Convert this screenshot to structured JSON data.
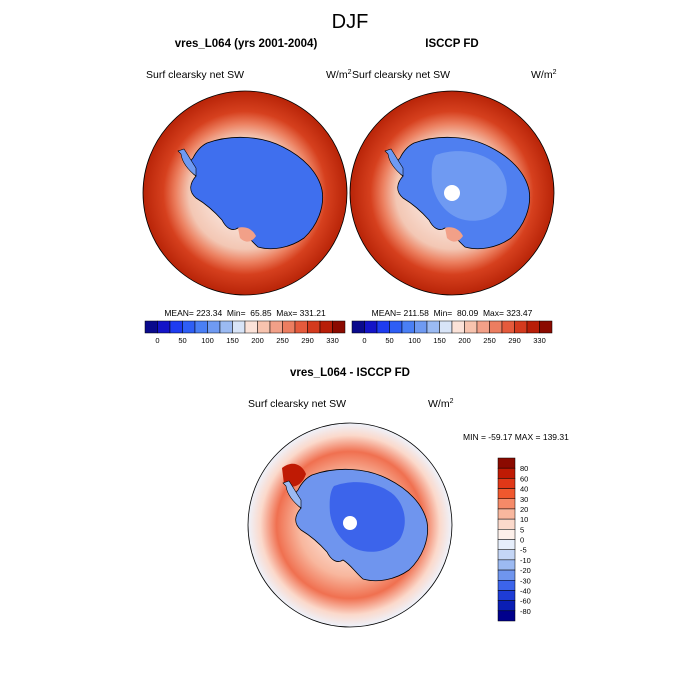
{
  "chart_data": {
    "type": "map",
    "title": "DJF",
    "panels": [
      {
        "title": "vres_L064 (yrs 2001-2004)",
        "left_label": "Surf clearsky net SW",
        "units_base": "W/m",
        "units_exp": "2",
        "stats_text": "MEAN= 223.34  Min=  65.85  Max= 331.21",
        "mean": 223.34,
        "min": 65.85,
        "max": 331.21
      },
      {
        "title": "ISCCP FD",
        "left_label": "Surf clearsky net SW",
        "units_base": "W/m",
        "units_exp": "2",
        "stats_text": "MEAN= 211.58  Min=  80.09  Max= 323.47",
        "mean": 211.58,
        "min": 80.09,
        "max": 323.47
      },
      {
        "title": "vres_L064 - ISCCP FD",
        "left_label": "Surf clearsky net SW",
        "units_base": "W/m",
        "units_exp": "2",
        "stats_text": "MIN = -59.17 MAX = 139.31",
        "min": -59.17,
        "max": 139.31
      }
    ],
    "colorbar_top": {
      "levels": [
        "0",
        "50",
        "100",
        "150",
        "200",
        "250",
        "290",
        "330"
      ],
      "colors": [
        "#0a0a8c",
        "#1414c8",
        "#1e3cf0",
        "#2e5ef5",
        "#4a7ff5",
        "#6f9af2",
        "#9bbaf2",
        "#d8e4f7",
        "#fbe2d8",
        "#f7c3ae",
        "#f2a088",
        "#ec7d60",
        "#e55a3c",
        "#d43a1e",
        "#b81e08",
        "#8b0a00"
      ]
    },
    "colorbar_diff": {
      "levels": [
        "80",
        "60",
        "40",
        "30",
        "20",
        "10",
        "5",
        "0",
        "-5",
        "-10",
        "-20",
        "-30",
        "-40",
        "-60",
        "-80"
      ],
      "colors": [
        "#8b0a00",
        "#bf1a04",
        "#e03818",
        "#f0582e",
        "#f58a68",
        "#f8b79e",
        "#fbd9cb",
        "#fdf0ea",
        "#e6eefb",
        "#c4d6f6",
        "#9cbaf2",
        "#6f95ee",
        "#3c64eb",
        "#1e3cd6",
        "#0a1eb4",
        "#00008c"
      ]
    }
  }
}
